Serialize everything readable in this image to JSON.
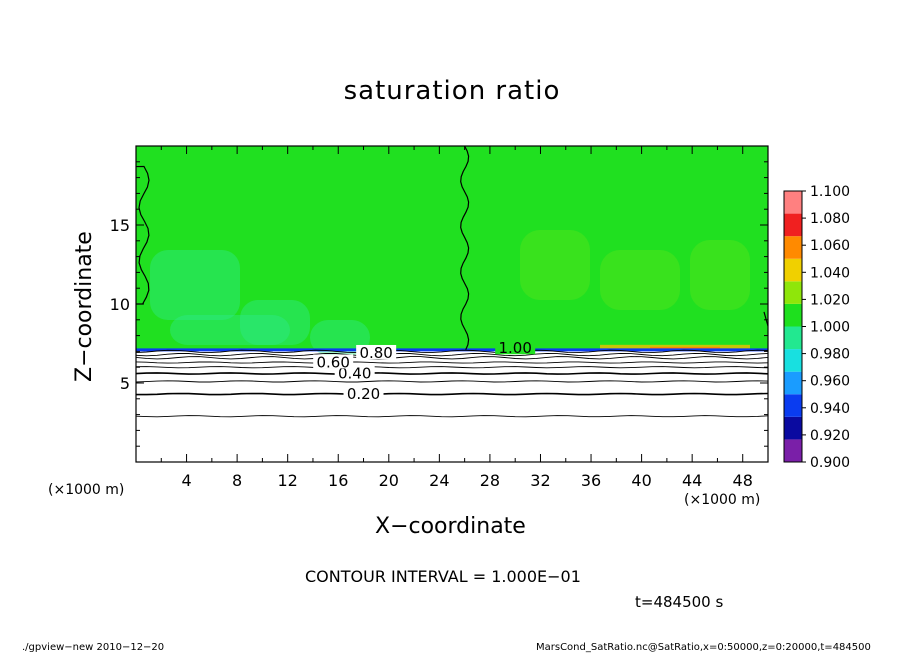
{
  "chart_data": {
    "type": "heatmap",
    "title": "saturation ratio",
    "xlabel": "X−coordinate",
    "ylabel": "Z−coordinate",
    "x_unit_label_left": "(×1000 m)",
    "x_unit_label_right": "(×1000 m)",
    "xlim": [
      0,
      50
    ],
    "ylim": [
      0,
      20
    ],
    "x_ticks": [
      "4",
      "8",
      "12",
      "16",
      "20",
      "24",
      "28",
      "32",
      "36",
      "40",
      "44",
      "48"
    ],
    "y_ticks": [
      "5",
      "10",
      "15"
    ],
    "contour_interval_text": "CONTOUR INTERVAL = 1.000E−01",
    "time_text": "t=484500 s",
    "colorbar": {
      "levels": [
        "0.900",
        "0.920",
        "0.940",
        "0.960",
        "0.980",
        "1.000",
        "1.020",
        "1.040",
        "1.060",
        "1.080",
        "1.100"
      ],
      "colors": [
        "#7a1fa8",
        "#0a0aa0",
        "#0a3cf0",
        "#1a9cff",
        "#18e0e0",
        "#22e890",
        "#1ee01e",
        "#8fe60a",
        "#f0d000",
        "#ff8a00",
        "#f02020",
        "#ff8080"
      ]
    },
    "contour_labels": [
      "0.20",
      "0.40",
      "0.60",
      "0.80",
      "1.00"
    ],
    "contour_levels_z": [
      {
        "level": 0.1,
        "z": 2.9
      },
      {
        "level": 0.2,
        "z": 4.3
      },
      {
        "level": 0.3,
        "z": 5.1
      },
      {
        "level": 0.4,
        "z": 5.6
      },
      {
        "level": 0.5,
        "z": 6.0
      },
      {
        "level": 0.6,
        "z": 6.3
      },
      {
        "level": 0.7,
        "z": 6.6
      },
      {
        "level": 0.8,
        "z": 6.8
      },
      {
        "level": 0.9,
        "z": 7.0
      }
    ],
    "cloud_base_z": 7.1
  },
  "footer": {
    "left": "./gpview−new   2010−12−20",
    "right": "MarsCond_SatRatio.nc@SatRatio,x=0:50000,z=0:20000,t=484500"
  }
}
